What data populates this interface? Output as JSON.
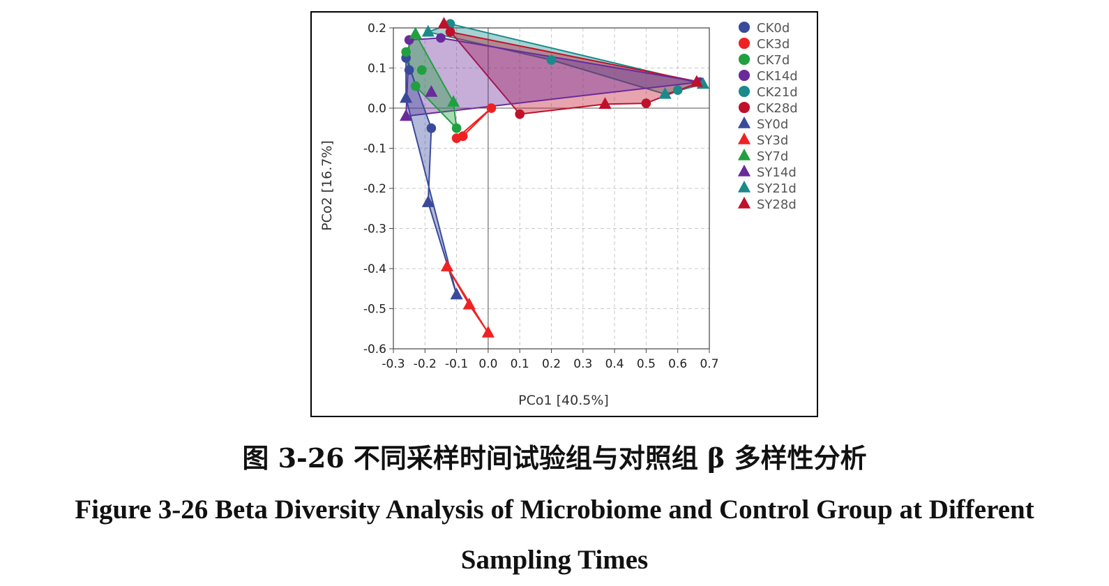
{
  "caption": {
    "cn": "图 3-26  不同采样时间试验组与对照组 β 多样性分析",
    "en_line1": "Figure 3-26 Beta Diversity Analysis of Microbiome and Control Group at Different",
    "en_line2": "Sampling Times"
  },
  "chart_data": {
    "type": "scatter",
    "xlabel": "PCo1 [40.5%]",
    "ylabel": "PCo2 [16.7%]",
    "xlim": [
      -0.3,
      0.7
    ],
    "ylim": [
      -0.6,
      0.2
    ],
    "xticks": [
      -0.3,
      -0.2,
      -0.1,
      0.0,
      0.1,
      0.2,
      0.3,
      0.4,
      0.5,
      0.6,
      0.7
    ],
    "xtick_labels": [
      "-0.3",
      "-0.2",
      "-0.1",
      "0.0",
      "0.1",
      "0.2",
      "0.3",
      "0.4",
      "0.5",
      "0.6",
      "0.7"
    ],
    "yticks": [
      0.2,
      0.1,
      0.0,
      -0.1,
      -0.2,
      -0.3,
      -0.4,
      -0.5,
      -0.6
    ],
    "ytick_labels": [
      "0.2",
      "0.1",
      "0.0",
      "-0.1",
      "-0.2",
      "-0.3",
      "-0.4",
      "-0.5",
      "-0.6"
    ],
    "grid": true,
    "legend_position": "right",
    "series": [
      {
        "name": "CK0d",
        "marker": "circle",
        "color": "#3a4a9a",
        "points": [
          [
            -0.26,
            0.125
          ],
          [
            -0.25,
            0.095
          ],
          [
            -0.18,
            -0.05
          ]
        ]
      },
      {
        "name": "CK3d",
        "marker": "circle",
        "color": "#ee2222",
        "points": [
          [
            -0.1,
            -0.075
          ],
          [
            -0.08,
            -0.07
          ],
          [
            0.01,
            0.0
          ]
        ]
      },
      {
        "name": "CK7d",
        "marker": "circle",
        "color": "#20a040",
        "points": [
          [
            -0.26,
            0.14
          ],
          [
            -0.23,
            0.055
          ],
          [
            -0.21,
            0.095
          ],
          [
            -0.1,
            -0.05
          ]
        ]
      },
      {
        "name": "CK14d",
        "marker": "circle",
        "color": "#6a2a9a",
        "points": [
          [
            -0.25,
            0.17
          ],
          [
            -0.15,
            0.175
          ],
          [
            0.67,
            0.065
          ]
        ]
      },
      {
        "name": "CK21d",
        "marker": "circle",
        "color": "#1a8a8a",
        "points": [
          [
            -0.12,
            0.21
          ],
          [
            0.2,
            0.12
          ],
          [
            0.6,
            0.045
          ]
        ]
      },
      {
        "name": "CK28d",
        "marker": "circle",
        "color": "#c0102a",
        "points": [
          [
            -0.12,
            0.19
          ],
          [
            0.1,
            -0.015
          ],
          [
            0.5,
            0.012
          ]
        ]
      },
      {
        "name": "SY0d",
        "marker": "triangle",
        "color": "#3a4a9a",
        "points": [
          [
            -0.26,
            0.025
          ],
          [
            -0.19,
            -0.235
          ],
          [
            -0.1,
            -0.465
          ]
        ]
      },
      {
        "name": "SY3d",
        "marker": "triangle",
        "color": "#ee2222",
        "points": [
          [
            -0.13,
            -0.395
          ],
          [
            -0.06,
            -0.49
          ],
          [
            0.0,
            -0.56
          ]
        ]
      },
      {
        "name": "SY7d",
        "marker": "triangle",
        "color": "#20a040",
        "points": [
          [
            -0.23,
            0.185
          ],
          [
            -0.11,
            0.015
          ]
        ]
      },
      {
        "name": "SY14d",
        "marker": "triangle",
        "color": "#6a2a9a",
        "points": [
          [
            -0.26,
            -0.02
          ],
          [
            -0.18,
            0.04
          ]
        ]
      },
      {
        "name": "SY21d",
        "marker": "triangle",
        "color": "#1a8a8a",
        "points": [
          [
            -0.19,
            0.19
          ],
          [
            0.56,
            0.035
          ],
          [
            0.68,
            0.06
          ]
        ]
      },
      {
        "name": "SY28d",
        "marker": "triangle",
        "color": "#c0102a",
        "points": [
          [
            -0.14,
            0.21
          ],
          [
            0.37,
            0.01
          ],
          [
            0.66,
            0.065
          ]
        ]
      }
    ],
    "polygons": [
      {
        "color": "#1a8a8a",
        "vertices": [
          [
            -0.19,
            0.19
          ],
          [
            -0.12,
            0.21
          ],
          [
            0.68,
            0.06
          ],
          [
            0.56,
            0.035
          ],
          [
            0.2,
            0.12
          ]
        ]
      },
      {
        "color": "#c0102a",
        "vertices": [
          [
            -0.14,
            0.21
          ],
          [
            -0.12,
            0.19
          ],
          [
            0.67,
            0.065
          ],
          [
            0.5,
            0.012
          ],
          [
            0.37,
            0.01
          ],
          [
            0.1,
            -0.015
          ]
        ]
      },
      {
        "color": "#6a2a9a",
        "vertices": [
          [
            -0.25,
            0.17
          ],
          [
            -0.15,
            0.175
          ],
          [
            0.67,
            0.065
          ],
          [
            -0.26,
            -0.02
          ]
        ]
      },
      {
        "color": "#20a040",
        "vertices": [
          [
            -0.26,
            0.14
          ],
          [
            -0.23,
            0.185
          ],
          [
            -0.11,
            0.015
          ],
          [
            -0.1,
            -0.05
          ],
          [
            -0.23,
            0.055
          ]
        ]
      },
      {
        "color": "#3a4a9a",
        "vertices": [
          [
            -0.26,
            0.125
          ],
          [
            -0.26,
            0.025
          ],
          [
            -0.1,
            -0.465
          ],
          [
            -0.19,
            -0.235
          ],
          [
            -0.18,
            -0.05
          ]
        ]
      },
      {
        "color": "#ee2222",
        "vertices": [
          [
            -0.13,
            -0.395
          ],
          [
            0.0,
            -0.56
          ],
          [
            -0.06,
            -0.49
          ]
        ]
      },
      {
        "color": "#ee2222",
        "vertices": [
          [
            -0.1,
            -0.075
          ],
          [
            -0.08,
            -0.07
          ],
          [
            0.01,
            0.0
          ]
        ]
      }
    ]
  }
}
